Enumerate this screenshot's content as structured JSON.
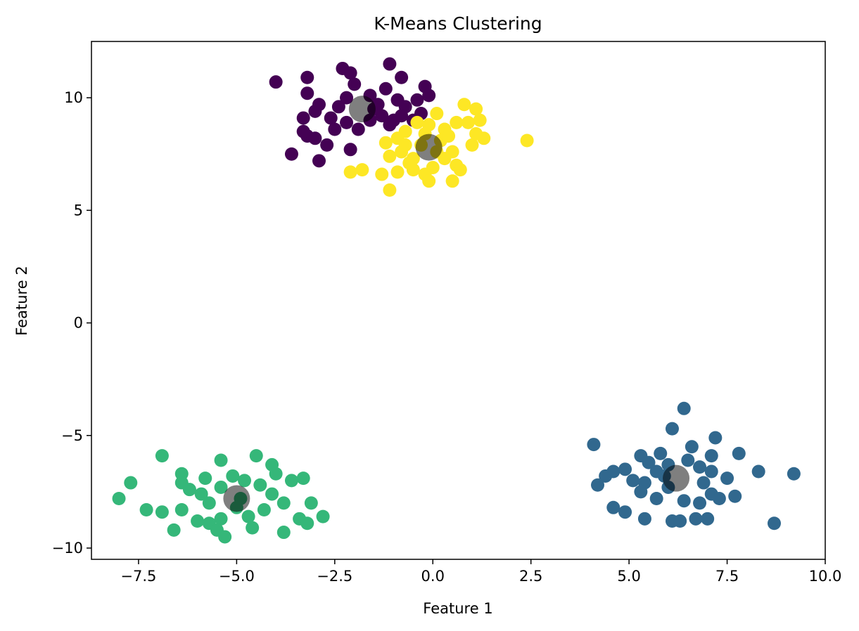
{
  "chart_data": {
    "type": "scatter",
    "title": "K-Means Clustering",
    "xlabel": "Feature 1",
    "ylabel": "Feature 2",
    "xlim": [
      -8.7,
      10.0
    ],
    "ylim": [
      -10.5,
      12.5
    ],
    "xticks": [
      -7.5,
      -5.0,
      -2.5,
      0.0,
      2.5,
      5.0,
      7.5,
      10.0
    ],
    "xtick_labels": [
      "−7.5",
      "−5.0",
      "−2.5",
      "0.0",
      "2.5",
      "5.0",
      "7.5",
      "10.0"
    ],
    "yticks": [
      -10,
      -5,
      0,
      5,
      10
    ],
    "ytick_labels": [
      "−10",
      "−5",
      "0",
      "5",
      "10"
    ],
    "grid": false,
    "series": [
      {
        "color": "#440154",
        "points": [
          [
            -4.0,
            10.7
          ],
          [
            -3.2,
            10.9
          ],
          [
            -2.3,
            11.3
          ],
          [
            -2.1,
            11.1
          ],
          [
            -1.1,
            11.5
          ],
          [
            -0.8,
            10.9
          ],
          [
            -0.2,
            10.5
          ],
          [
            -0.1,
            10.1
          ],
          [
            -3.2,
            10.2
          ],
          [
            -2.9,
            9.7
          ],
          [
            -3.0,
            9.4
          ],
          [
            -3.3,
            9.1
          ],
          [
            -2.6,
            9.1
          ],
          [
            -2.4,
            9.6
          ],
          [
            -2.2,
            10.0
          ],
          [
            -2.0,
            10.6
          ],
          [
            -1.6,
            10.1
          ],
          [
            -1.4,
            9.7
          ],
          [
            -1.2,
            10.4
          ],
          [
            -0.9,
            9.9
          ],
          [
            -0.7,
            9.6
          ],
          [
            -0.4,
            9.9
          ],
          [
            -0.3,
            9.3
          ],
          [
            -0.5,
            9.0
          ],
          [
            -1.0,
            9.0
          ],
          [
            -1.3,
            9.2
          ],
          [
            -1.6,
            9.0
          ],
          [
            -1.9,
            8.6
          ],
          [
            -2.2,
            8.9
          ],
          [
            -2.5,
            8.6
          ],
          [
            -2.7,
            7.9
          ],
          [
            -2.1,
            7.7
          ],
          [
            -3.2,
            8.3
          ],
          [
            -3.3,
            8.5
          ],
          [
            -3.0,
            8.2
          ],
          [
            -3.6,
            7.5
          ],
          [
            -2.9,
            7.2
          ],
          [
            -1.1,
            8.8
          ],
          [
            -0.8,
            9.2
          ],
          [
            -1.5,
            9.5
          ]
        ]
      },
      {
        "color": "#fde725",
        "points": [
          [
            0.1,
            9.3
          ],
          [
            0.8,
            9.7
          ],
          [
            1.1,
            9.5
          ],
          [
            1.2,
            9.0
          ],
          [
            0.6,
            8.9
          ],
          [
            0.3,
            8.6
          ],
          [
            -0.1,
            8.8
          ],
          [
            -0.4,
            8.9
          ],
          [
            -0.7,
            8.5
          ],
          [
            -0.9,
            8.2
          ],
          [
            -1.2,
            8.0
          ],
          [
            -1.1,
            7.4
          ],
          [
            -0.8,
            7.6
          ],
          [
            -0.5,
            7.3
          ],
          [
            -0.3,
            7.9
          ],
          [
            0.2,
            8.1
          ],
          [
            0.5,
            7.6
          ],
          [
            0.6,
            7.0
          ],
          [
            0.3,
            7.3
          ],
          [
            0.0,
            6.9
          ],
          [
            -0.2,
            6.6
          ],
          [
            -0.5,
            6.8
          ],
          [
            -0.9,
            6.7
          ],
          [
            -1.3,
            6.6
          ],
          [
            -1.1,
            5.9
          ],
          [
            -0.1,
            6.3
          ],
          [
            0.5,
            6.3
          ],
          [
            0.7,
            6.8
          ],
          [
            1.0,
            7.9
          ],
          [
            1.3,
            8.2
          ],
          [
            1.1,
            8.4
          ],
          [
            0.9,
            8.9
          ],
          [
            2.4,
            8.1
          ],
          [
            -1.8,
            6.8
          ],
          [
            -2.1,
            6.7
          ],
          [
            -0.6,
            7.1
          ],
          [
            0.1,
            7.6
          ],
          [
            -0.2,
            8.4
          ],
          [
            0.4,
            8.3
          ],
          [
            -0.7,
            7.9
          ]
        ]
      },
      {
        "color": "#31688e",
        "points": [
          [
            6.4,
            -3.8
          ],
          [
            6.1,
            -4.7
          ],
          [
            7.2,
            -5.1
          ],
          [
            4.1,
            -5.4
          ],
          [
            6.6,
            -5.5
          ],
          [
            5.3,
            -5.9
          ],
          [
            5.8,
            -5.8
          ],
          [
            7.1,
            -5.9
          ],
          [
            7.8,
            -5.8
          ],
          [
            5.5,
            -6.2
          ],
          [
            4.9,
            -6.5
          ],
          [
            4.6,
            -6.6
          ],
          [
            4.4,
            -6.8
          ],
          [
            5.1,
            -7.0
          ],
          [
            5.4,
            -7.1
          ],
          [
            5.7,
            -6.6
          ],
          [
            6.0,
            -6.3
          ],
          [
            6.5,
            -6.1
          ],
          [
            6.8,
            -6.4
          ],
          [
            7.1,
            -6.6
          ],
          [
            7.5,
            -6.9
          ],
          [
            8.3,
            -6.6
          ],
          [
            9.2,
            -6.7
          ],
          [
            4.2,
            -7.2
          ],
          [
            5.3,
            -7.5
          ],
          [
            5.7,
            -7.8
          ],
          [
            6.0,
            -7.3
          ],
          [
            6.4,
            -7.9
          ],
          [
            6.8,
            -8.0
          ],
          [
            7.1,
            -7.6
          ],
          [
            7.3,
            -7.8
          ],
          [
            7.7,
            -7.7
          ],
          [
            4.6,
            -8.2
          ],
          [
            4.9,
            -8.4
          ],
          [
            5.4,
            -8.7
          ],
          [
            6.1,
            -8.8
          ],
          [
            6.3,
            -8.8
          ],
          [
            6.7,
            -8.7
          ],
          [
            7.0,
            -8.7
          ],
          [
            8.7,
            -8.9
          ],
          [
            5.9,
            -6.8
          ],
          [
            6.9,
            -7.1
          ]
        ]
      },
      {
        "color": "#35b779",
        "points": [
          [
            -6.9,
            -5.9
          ],
          [
            -4.5,
            -5.9
          ],
          [
            -5.4,
            -6.1
          ],
          [
            -6.4,
            -6.7
          ],
          [
            -4.1,
            -6.3
          ],
          [
            -4.0,
            -6.7
          ],
          [
            -3.3,
            -6.9
          ],
          [
            -3.6,
            -7.0
          ],
          [
            -5.8,
            -6.9
          ],
          [
            -6.4,
            -7.1
          ],
          [
            -6.2,
            -7.4
          ],
          [
            -5.9,
            -7.6
          ],
          [
            -5.7,
            -8.0
          ],
          [
            -5.4,
            -7.3
          ],
          [
            -5.1,
            -6.8
          ],
          [
            -4.8,
            -7.0
          ],
          [
            -4.4,
            -7.2
          ],
          [
            -4.1,
            -7.6
          ],
          [
            -3.8,
            -8.0
          ],
          [
            -4.3,
            -8.3
          ],
          [
            -4.7,
            -8.6
          ],
          [
            -5.0,
            -8.2
          ],
          [
            -5.4,
            -8.7
          ],
          [
            -5.7,
            -8.9
          ],
          [
            -6.0,
            -8.8
          ],
          [
            -5.5,
            -9.2
          ],
          [
            -5.3,
            -9.5
          ],
          [
            -4.6,
            -9.1
          ],
          [
            -3.8,
            -9.3
          ],
          [
            -3.4,
            -8.7
          ],
          [
            -3.1,
            -8.0
          ],
          [
            -2.8,
            -8.6
          ],
          [
            -3.2,
            -8.9
          ],
          [
            -6.4,
            -8.3
          ],
          [
            -6.9,
            -8.4
          ],
          [
            -7.3,
            -8.3
          ],
          [
            -7.7,
            -7.1
          ],
          [
            -8.0,
            -7.8
          ],
          [
            -6.6,
            -9.2
          ],
          [
            -4.9,
            -7.8
          ]
        ]
      }
    ],
    "centroids": {
      "color": "#000000",
      "opacity": 0.5,
      "points": [
        [
          -1.8,
          9.5
        ],
        [
          -0.1,
          7.8
        ],
        [
          6.2,
          -6.9
        ],
        [
          -5.0,
          -7.8
        ]
      ]
    }
  }
}
